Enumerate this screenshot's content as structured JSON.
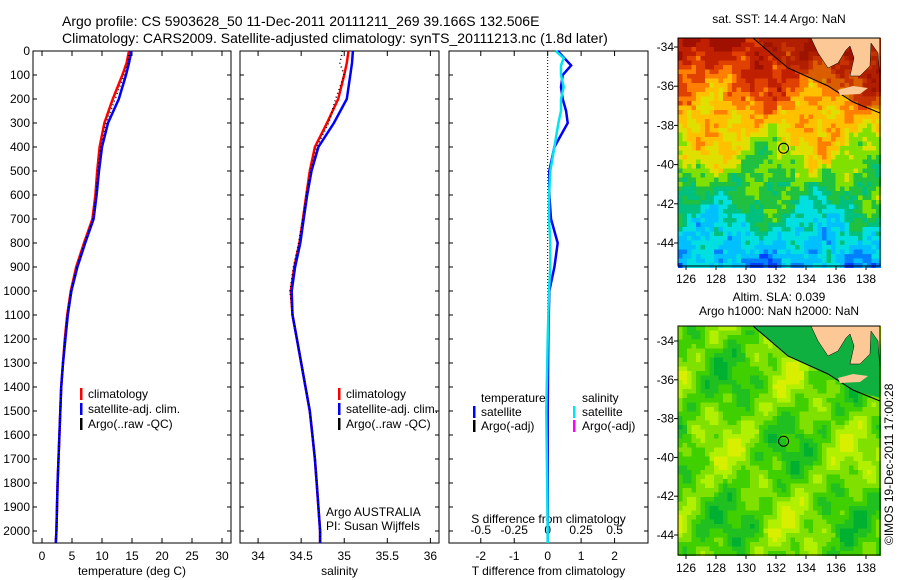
{
  "header": {
    "line1": "Argo profile: CS 5903628_50 11-Dec-2011 20111211_269 39.166S 132.506E",
    "line2": "Climatology: CARS2009. Satellite-adjusted climatology: synTS_20111213.nc (1.8d later)"
  },
  "colors": {
    "climatology": "#ff0000",
    "satellite": "#0000ff",
    "argo": "#000000",
    "sal_satellite": "#00e5ee",
    "sal_argo": "#ff00ff"
  },
  "chart_data": [
    {
      "type": "line",
      "id": "temperature",
      "xlabel": "temperature (deg C)",
      "ylabel": "",
      "xlim": [
        -1.5,
        31.5
      ],
      "ylim": [
        2050,
        0
      ],
      "xticks": [
        "0",
        "5",
        "10",
        "15",
        "20",
        "25",
        "30"
      ],
      "yticks": [
        "0",
        "100",
        "200",
        "300",
        "400",
        "500",
        "600",
        "700",
        "800",
        "900",
        "1000",
        "1100",
        "1200",
        "1300",
        "1400",
        "1500",
        "1600",
        "1700",
        "1800",
        "1900",
        "2000"
      ],
      "depth": [
        0,
        50,
        100,
        200,
        300,
        400,
        500,
        600,
        700,
        800,
        900,
        1000,
        1100,
        1200,
        1300,
        1400,
        1600,
        1800,
        2000,
        2050
      ],
      "series": [
        {
          "name": "climatology",
          "color": "#ff0000",
          "values": [
            14.5,
            14.1,
            13.4,
            11.8,
            10.4,
            9.6,
            9.2,
            8.9,
            8.4,
            7.0,
            5.7,
            4.8,
            4.2,
            3.8,
            3.5,
            3.2,
            2.9,
            2.6,
            2.4,
            2.3
          ]
        },
        {
          "name": "satellite-adj. clim.",
          "color": "#0000ff",
          "values": [
            14.9,
            14.5,
            14.0,
            12.8,
            11.0,
            10.0,
            9.5,
            9.1,
            8.6,
            7.2,
            5.9,
            4.9,
            4.3,
            3.9,
            3.5,
            3.2,
            2.9,
            2.6,
            2.4,
            2.3
          ]
        },
        {
          "name": "Argo(..raw -QC)",
          "color": "#000000",
          "values": [
            14.6,
            14.3,
            13.7,
            12.2,
            10.7,
            9.8,
            9.3,
            9.0,
            8.5,
            7.1,
            5.8,
            4.8,
            4.2,
            3.8,
            3.5,
            3.2,
            2.9,
            2.6,
            2.4,
            2.3
          ],
          "dotted": true
        }
      ],
      "legend": [
        "climatology",
        "satellite-adj. clim.",
        "Argo(..raw -QC)"
      ]
    },
    {
      "type": "line",
      "id": "salinity",
      "xlabel": "salinity",
      "xlim": [
        33.79,
        36.1
      ],
      "ylim": [
        2050,
        0
      ],
      "xticks": [
        "34",
        "34.5",
        "35",
        "35.5",
        "36"
      ],
      "depth": [
        0,
        50,
        100,
        200,
        300,
        400,
        500,
        600,
        700,
        800,
        900,
        1000,
        1100,
        1200,
        1300,
        1400,
        1500,
        1600,
        1700,
        1800,
        1900,
        2000,
        2050
      ],
      "series": [
        {
          "name": "climatology",
          "color": "#ff0000",
          "values": [
            35.05,
            35.03,
            35.0,
            34.93,
            34.8,
            34.66,
            34.6,
            34.56,
            34.52,
            34.48,
            34.42,
            34.38,
            34.4,
            34.45,
            34.5,
            34.55,
            34.6,
            34.63,
            34.66,
            34.68,
            34.7,
            34.72,
            34.72
          ]
        },
        {
          "name": "satellite-adj. clim.",
          "color": "#0000ff",
          "values": [
            35.1,
            35.09,
            35.07,
            35.03,
            34.88,
            34.7,
            34.62,
            34.57,
            34.53,
            34.49,
            34.43,
            34.39,
            34.4,
            34.45,
            34.5,
            34.55,
            34.6,
            34.63,
            34.66,
            34.68,
            34.7,
            34.72,
            34.72
          ]
        },
        {
          "name": "Argo(..raw -QC)",
          "color": "#000000",
          "values": [
            34.98,
            34.95,
            35.0,
            34.9,
            34.82,
            34.68,
            34.61,
            34.56,
            34.52,
            34.47,
            34.41,
            34.37,
            34.4,
            34.45,
            34.5,
            34.55,
            34.6,
            34.63,
            34.66,
            34.68,
            34.7,
            34.72,
            34.72
          ],
          "dotted": true
        }
      ],
      "legend": [
        "climatology",
        "satellite-adj. clim.",
        "Argo(..raw -QC)"
      ],
      "annotation": [
        "Argo AUSTRALIA",
        "PI: Susan Wijffels"
      ]
    },
    {
      "type": "line",
      "id": "difference",
      "xlabel": "T difference from climatology",
      "xlabel_top": "S difference from climatology",
      "xlim": [
        -2.95,
        3.0
      ],
      "ylim": [
        2050,
        0
      ],
      "xticks": [
        "-2",
        "-1",
        "0",
        "1",
        "2"
      ],
      "xticks_top": [
        "-0.5",
        "-0.25",
        "0",
        "0.25",
        "0.5"
      ],
      "depth": [
        0,
        30,
        60,
        100,
        150,
        200,
        250,
        300,
        400,
        500,
        600,
        700,
        800,
        900,
        1000,
        1200,
        1500,
        2000,
        2050
      ],
      "series": [
        {
          "name": "temperature satellite",
          "color": "#0000ff",
          "values": [
            0.3,
            0.5,
            0.7,
            0.45,
            0.4,
            0.45,
            0.55,
            0.6,
            0.2,
            0.05,
            0.05,
            0.1,
            0.3,
            0.2,
            0.05,
            0.02,
            0.0,
            0.0,
            0.0
          ]
        },
        {
          "name": "salinity satellite",
          "color": "#00e5ee",
          "values": [
            0.06,
            0.12,
            0.1,
            0.1,
            0.12,
            0.1,
            0.1,
            0.08,
            0.05,
            0.02,
            0.01,
            0.01,
            0.02,
            0.02,
            0.01,
            0.0,
            -0.01,
            0.0,
            0.0
          ]
        }
      ],
      "legend_left": {
        "heading": "temperature",
        "items": [
          "satellite",
          "Argo(-adj)"
        ]
      },
      "legend_right": {
        "heading": "salinity",
        "items": [
          "satellite",
          "Argo(-adj)"
        ]
      }
    }
  ],
  "maps": [
    {
      "id": "sst",
      "title": "sat. SST: 14.4 Argo: NaN",
      "xticks": [
        "126",
        "128",
        "130",
        "132",
        "134",
        "136",
        "138"
      ],
      "yticks": [
        "-34",
        "-36",
        "-38",
        "-40",
        "-42",
        "-44"
      ],
      "palette": "sst"
    },
    {
      "id": "sla",
      "title1": "Altim. SLA: 0.039",
      "title2": "Argo h1000: NaN h2000: NaN",
      "xticks": [
        "126",
        "128",
        "130",
        "132",
        "134",
        "136",
        "138"
      ],
      "yticks": [
        "-34",
        "-36",
        "-38",
        "-40",
        "-42",
        "-44"
      ],
      "palette": "sla"
    }
  ],
  "profile_location": {
    "lon": 132.506,
    "lat": -39.166
  },
  "footer": {
    "credit": "©IMOS 19-Dec-2011 17:00:28"
  }
}
